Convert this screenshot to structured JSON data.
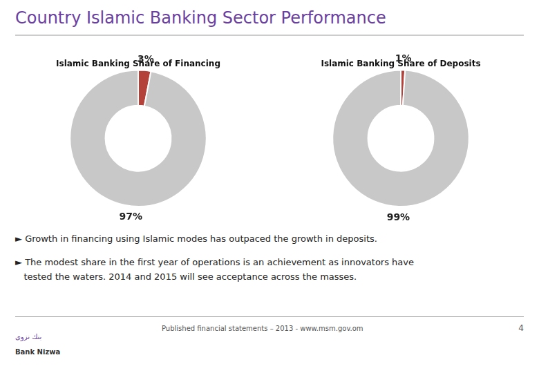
{
  "title": "Country Islamic Banking Sector Performance",
  "chart_data": [
    {
      "type": "doughnut",
      "title": "Islamic Banking Share of Financing",
      "values": [
        3,
        97
      ],
      "value_labels": [
        "3%",
        "97%"
      ],
      "data_labels": true,
      "colors": [
        "#b5413b",
        "#c8c8c8"
      ]
    },
    {
      "type": "doughnut",
      "title": "Islamic Banking Share of Deposits",
      "values": [
        1,
        99
      ],
      "value_labels": [
        "1%",
        "99%"
      ],
      "data_labels": true,
      "colors": [
        "#b5413b",
        "#c8c8c8"
      ]
    }
  ],
  "annotations": [
    "► Growth in financing using Islamic modes has outpaced the growth in deposits.",
    "► The modest share in the first year of operations is an achievement as innovators have",
    "   tested the waters. 2014 and 2015 will see acceptance across the masses.",
    "Published financial statements – 2013 - www.msm.gov.om",
    "4",
    "بنك نزوى",
    "Bank Nizwa"
  ]
}
